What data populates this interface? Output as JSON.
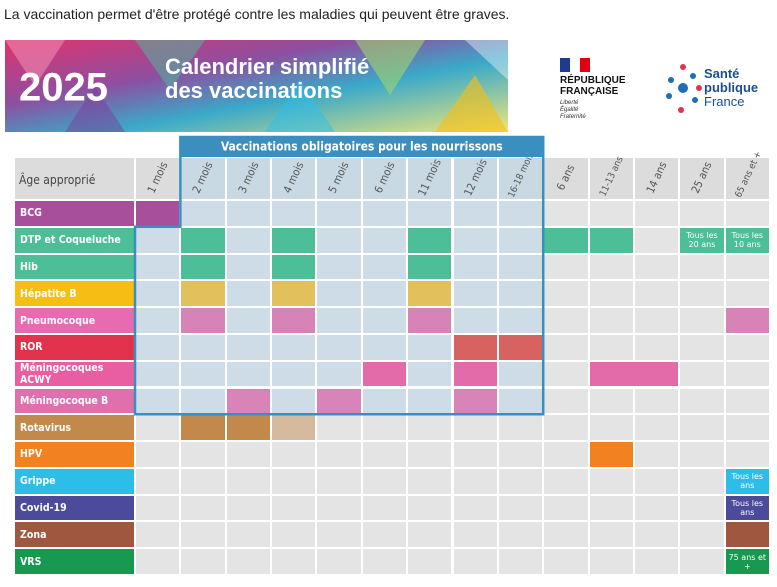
{
  "intro": "La vaccination permet d'être protégé contre les maladies qui peuvent être graves.",
  "banner": {
    "year": "2025",
    "title_line1": "Calendrier simplifié",
    "title_line2": "des vaccinations"
  },
  "logos": {
    "republique_line1": "RÉPUBLIQUE",
    "republique_line2": "FRANÇAISE",
    "motto": [
      "Liberté",
      "Égalité",
      "Fraternité"
    ],
    "spf_line1": "Santé",
    "spf_line2": "publique",
    "spf_line3": "France"
  },
  "table": {
    "box_title": "Vaccinations obligatoires pour les nourrissons",
    "corner": "Âge approprié",
    "ages": [
      "1 mois",
      "2 mois",
      "3 mois",
      "4 mois",
      "5 mois",
      "6 mois",
      "11 mois",
      "12 mois",
      "16-18 mois",
      "6 ans",
      "11-13 ans",
      "14 ans",
      "25 ans",
      "65 ans et +"
    ],
    "rows": [
      {
        "name": "BCG",
        "color": "#a84f9c",
        "dose_color": "#a84f9c",
        "doses": [
          {
            "age": 0
          }
        ]
      },
      {
        "name": "DTP et Coqueluche",
        "color": "#4cbf99",
        "dose_color": "#4cbf99",
        "doses": [
          {
            "age": 1
          },
          {
            "age": 3
          },
          {
            "age": 6
          },
          {
            "age": 9
          },
          {
            "age": 10
          },
          {
            "age": 12,
            "label": "Tous les 20 ans"
          },
          {
            "age": 13,
            "label": "Tous les 10 ans"
          }
        ]
      },
      {
        "name": "Hib",
        "color": "#4cbf99",
        "dose_color": "#4cbf99",
        "doses": [
          {
            "age": 1
          },
          {
            "age": 3
          },
          {
            "age": 6
          }
        ]
      },
      {
        "name": "Hépatite B",
        "color": "#f6be12",
        "dose_color": "#e2c15c",
        "doses": [
          {
            "age": 1
          },
          {
            "age": 3
          },
          {
            "age": 6
          }
        ]
      },
      {
        "name": "Pneumocoque",
        "color": "#ea6ab1",
        "dose_color": "#d883b8",
        "doses": [
          {
            "age": 1
          },
          {
            "age": 3
          },
          {
            "age": 6
          },
          {
            "age": 13
          }
        ]
      },
      {
        "name": "ROR",
        "color": "#e2334e",
        "dose_color": "#d8625f",
        "doses": [
          {
            "age": 7
          },
          {
            "age": 8
          }
        ]
      },
      {
        "name": "Méningocoques ACWY",
        "color": "#e95da2",
        "dose_color": "#e46ba9",
        "doses": [
          {
            "age": 5
          },
          {
            "age": 7
          },
          {
            "age": 10,
            "span": 2
          }
        ]
      },
      {
        "name": "Méningocoque B",
        "color": "#e06fae",
        "dose_color": "#d884b9",
        "doses": [
          {
            "age": 2
          },
          {
            "age": 4
          },
          {
            "age": 7
          }
        ]
      },
      {
        "name": "Rotavirus",
        "color": "#c3894a",
        "dose_color": "#c3894a",
        "doses": [
          {
            "age": 1
          },
          {
            "age": 2
          },
          {
            "age": 3,
            "tone": "light"
          }
        ]
      },
      {
        "name": "HPV",
        "color": "#f2821f",
        "dose_color": "#f2821f",
        "doses": [
          {
            "age": 10
          }
        ]
      },
      {
        "name": "Grippe",
        "color": "#2dbde9",
        "dose_color": "#2dbde9",
        "doses": [
          {
            "age": 13,
            "label": "Tous les ans"
          }
        ]
      },
      {
        "name": "Covid-19",
        "color": "#4b4a9b",
        "dose_color": "#4b4a9b",
        "doses": [
          {
            "age": 13,
            "label": "Tous les ans"
          }
        ]
      },
      {
        "name": "Zona",
        "color": "#a0573f",
        "dose_color": "#a0573f",
        "doses": [
          {
            "age": 13
          }
        ]
      },
      {
        "name": "VRS",
        "color": "#17994f",
        "dose_color": "#17994f",
        "doses": [
          {
            "age": 13,
            "label": "75 ans et +"
          }
        ]
      }
    ]
  }
}
